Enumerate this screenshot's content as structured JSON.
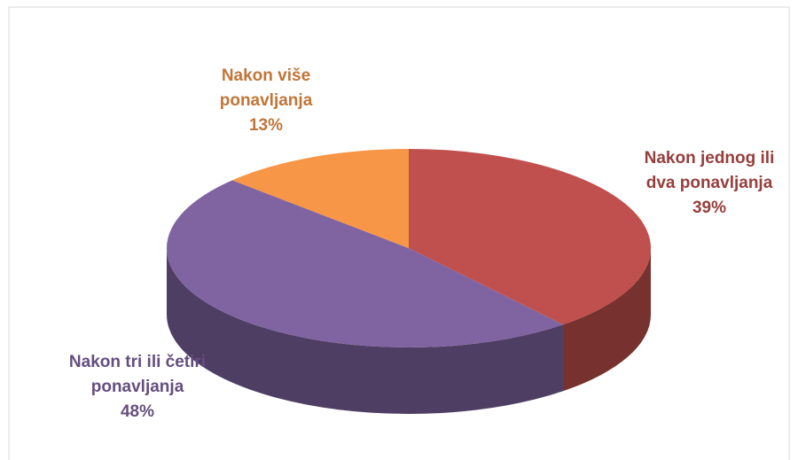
{
  "chart_data": {
    "type": "pie3d",
    "categories": [
      "Nakon jednog ili dva ponavljanja",
      "Nakon tri ili četiri ponavljanja",
      "Nakon više ponavljanja"
    ],
    "values": [
      39,
      48,
      13
    ],
    "value_labels": [
      "39%",
      "48%",
      "13%"
    ],
    "colors": [
      "#c0504d",
      "#8064a2",
      "#f79646"
    ]
  }
}
